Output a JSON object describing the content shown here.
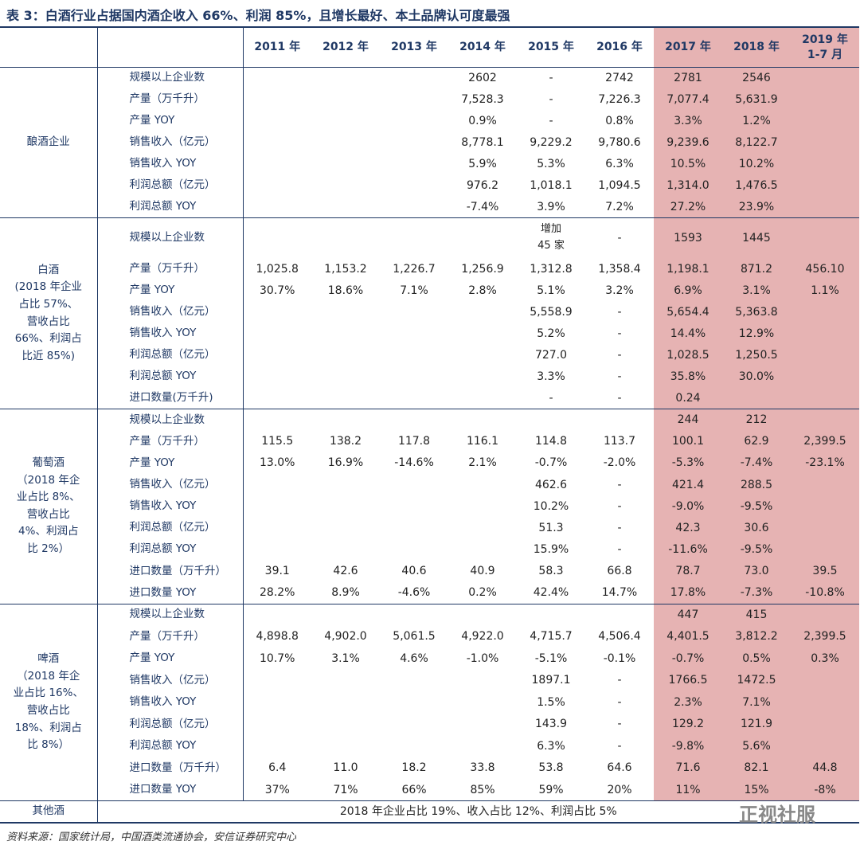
{
  "title": "表 3：白酒行业占据国内酒企收入 66%、利润 85%，且增长最好、本土品牌认可度最强",
  "header": [
    "2011 年",
    "2012 年",
    "2013 年",
    "2014 年",
    "2015 年",
    "2016 年",
    "2017 年",
    "2018 年",
    "2019 年\n1-7 月"
  ],
  "groups": [
    {
      "label": "酿酒企业",
      "rows": [
        {
          "label": "规模以上企业数",
          "cells": [
            null,
            null,
            null,
            "2602",
            "-",
            "2742",
            "2781",
            "2546",
            null
          ]
        },
        {
          "label": "产量（万千升）",
          "cells": [
            null,
            null,
            null,
            "7,528.3",
            "-",
            "7,226.3",
            "7,077.4",
            "5,631.9",
            null
          ]
        },
        {
          "label": "产量 YOY",
          "cells": [
            null,
            null,
            null,
            "0.9%",
            "-",
            "0.8%",
            "3.3%",
            "1.2%",
            null
          ]
        },
        {
          "label": "销售收入（亿元）",
          "cells": [
            null,
            null,
            null,
            "8,778.1",
            "9,229.2",
            "9,780.6",
            "9,239.6",
            "8,122.7",
            null
          ]
        },
        {
          "label": "销售收入 YOY",
          "cells": [
            null,
            null,
            null,
            "5.9%",
            "5.3%",
            "6.3%",
            "10.5%",
            "10.2%",
            null
          ]
        },
        {
          "label": "利润总额（亿元）",
          "cells": [
            null,
            null,
            null,
            "976.2",
            "1,018.1",
            "1,094.5",
            "1,314.0",
            "1,476.5",
            null
          ]
        },
        {
          "label": "利润总额 YOY",
          "cells": [
            null,
            null,
            null,
            "-7.4%",
            "3.9%",
            "7.2%",
            "27.2%",
            "23.9%",
            null
          ]
        }
      ]
    },
    {
      "label": "白酒\n(2018 年企业\n占比 57%、\n营收占比\n66%、利润占\n比近 85%)",
      "rows": [
        {
          "label": "规模以上企业数",
          "cells": [
            null,
            null,
            null,
            null,
            "增加\n45 家",
            "-",
            "1593",
            "1445",
            null
          ]
        },
        {
          "label": "产量（万千升）",
          "cells": [
            "1,025.8",
            "1,153.2",
            "1,226.7",
            "1,256.9",
            "1,312.8",
            "1,358.4",
            "1,198.1",
            "871.2",
            "456.10"
          ]
        },
        {
          "label": "产量 YOY",
          "cells": [
            "30.7%",
            "18.6%",
            "7.1%",
            "2.8%",
            "5.1%",
            "3.2%",
            "6.9%",
            "3.1%",
            "1.1%"
          ]
        },
        {
          "label": "销售收入（亿元）",
          "cells": [
            null,
            null,
            null,
            null,
            "5,558.9",
            "-",
            "5,654.4",
            "5,363.8",
            null
          ]
        },
        {
          "label": "销售收入 YOY",
          "cells": [
            null,
            null,
            null,
            null,
            "5.2%",
            "-",
            "14.4%",
            "12.9%",
            null
          ]
        },
        {
          "label": "利润总额（亿元）",
          "cells": [
            null,
            null,
            null,
            null,
            "727.0",
            "-",
            "1,028.5",
            "1,250.5",
            null
          ]
        },
        {
          "label": "利润总额 YOY",
          "cells": [
            null,
            null,
            null,
            null,
            "3.3%",
            "-",
            "35.8%",
            "30.0%",
            null
          ]
        },
        {
          "label": "进口数量(万千升)",
          "cells": [
            null,
            null,
            null,
            null,
            "-",
            "-",
            "0.24",
            null,
            null
          ]
        }
      ]
    },
    {
      "label": "葡萄酒\n（2018 年企\n业占比 8%、\n营收占比\n4%、利润占\n比 2%）",
      "rows": [
        {
          "label": "规模以上企业数",
          "cells": [
            null,
            null,
            null,
            null,
            null,
            null,
            "244",
            "212",
            null
          ]
        },
        {
          "label": "产量（万千升）",
          "cells": [
            "115.5",
            "138.2",
            "117.8",
            "116.1",
            "114.8",
            "113.7",
            "100.1",
            "62.9",
            "2,399.5"
          ]
        },
        {
          "label": "产量 YOY",
          "cells": [
            "13.0%",
            "16.9%",
            "-14.6%",
            "2.1%",
            "-0.7%",
            "-2.0%",
            "-5.3%",
            "-7.4%",
            "-23.1%"
          ]
        },
        {
          "label": "销售收入（亿元）",
          "cells": [
            null,
            null,
            null,
            null,
            "462.6",
            "-",
            "421.4",
            "288.5",
            null
          ]
        },
        {
          "label": "销售收入 YOY",
          "cells": [
            null,
            null,
            null,
            null,
            "10.2%",
            "-",
            "-9.0%",
            "-9.5%",
            null
          ]
        },
        {
          "label": "利润总额（亿元）",
          "cells": [
            null,
            null,
            null,
            null,
            "51.3",
            "-",
            "42.3",
            "30.6",
            null
          ]
        },
        {
          "label": "利润总额 YOY",
          "cells": [
            null,
            null,
            null,
            null,
            "15.9%",
            "-",
            "-11.6%",
            "-9.5%",
            null
          ]
        },
        {
          "label": "进口数量（万千升）",
          "cells": [
            "39.1",
            "42.6",
            "40.6",
            "40.9",
            "58.3",
            "66.8",
            "78.7",
            "73.0",
            "39.5"
          ]
        },
        {
          "label": "进口数量 YOY",
          "cells": [
            "28.2%",
            "8.9%",
            "-4.6%",
            "0.2%",
            "42.4%",
            "14.7%",
            "17.8%",
            "-7.3%",
            "-10.8%"
          ]
        }
      ]
    },
    {
      "label": "啤酒\n（2018 年企\n业占比 16%、\n营收占比\n18%、利润占\n比 8%）",
      "rows": [
        {
          "label": "规模以上企业数",
          "cells": [
            null,
            null,
            null,
            null,
            null,
            null,
            "447",
            "415",
            null
          ]
        },
        {
          "label": "产量（万千升）",
          "cells": [
            "4,898.8",
            "4,902.0",
            "5,061.5",
            "4,922.0",
            "4,715.7",
            "4,506.4",
            "4,401.5",
            "3,812.2",
            "2,399.5"
          ]
        },
        {
          "label": "产量 YOY",
          "cells": [
            "10.7%",
            "3.1%",
            "4.6%",
            "-1.0%",
            "-5.1%",
            "-0.1%",
            "-0.7%",
            "0.5%",
            "0.3%"
          ]
        },
        {
          "label": "销售收入（亿元）",
          "cells": [
            null,
            null,
            null,
            null,
            "1897.1",
            "-",
            "1766.5",
            "1472.5",
            null
          ]
        },
        {
          "label": "销售收入 YOY",
          "cells": [
            null,
            null,
            null,
            null,
            "1.5%",
            "-",
            "2.3%",
            "7.1%",
            null
          ]
        },
        {
          "label": "利润总额（亿元）",
          "cells": [
            null,
            null,
            null,
            null,
            "143.9",
            "-",
            "129.2",
            "121.9",
            null
          ]
        },
        {
          "label": "利润总额 YOY",
          "cells": [
            null,
            null,
            null,
            null,
            "6.3%",
            "-",
            "-9.8%",
            "5.6%",
            null
          ]
        },
        {
          "label": "进口数量（万千升）",
          "cells": [
            "6.4",
            "11.0",
            "18.2",
            "33.8",
            "53.8",
            "64.6",
            "71.6",
            "82.1",
            "44.8"
          ]
        },
        {
          "label": "进口数量 YOY",
          "cells": [
            "37%",
            "71%",
            "66%",
            "85%",
            "59%",
            "20%",
            "11%",
            "15%",
            "-8%"
          ]
        }
      ]
    }
  ],
  "other": {
    "label": "其他酒",
    "text": "2018 年企业占比 19%、收入占比 12%、利润占比 5%"
  },
  "source": "资料来源：国家统计局，中国酒类流通协会，安信证券研究中心",
  "watermark": "正视社服"
}
